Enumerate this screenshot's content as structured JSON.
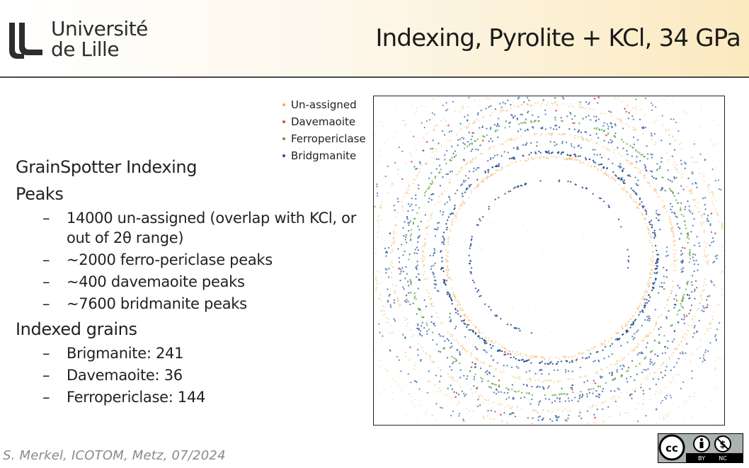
{
  "header": {
    "logo_line1": "Université",
    "logo_line2": "de Lille",
    "title": "Indexing, Pyrolite + KCl, 34 GPa"
  },
  "content": {
    "heading_grainspotter": "GrainSpotter Indexing",
    "heading_peaks": "Peaks",
    "peaks": [
      "14000 un-assigned (overlap with KCl, or out of 2θ range)",
      "~2000 ferro-periclase peaks",
      "~400 davemaoite peaks",
      "~7600 bridmanite peaks"
    ],
    "heading_grains": "Indexed grains",
    "grains": [
      "Brigmanite: 241",
      "Davemaoite: 36",
      "Ferropericlase: 144"
    ],
    "dash": "–"
  },
  "chart_data": {
    "type": "scatter",
    "legend": [
      {
        "name": "Un-assigned",
        "color": "#f5ab4c"
      },
      {
        "name": "Davemaoite",
        "color": "#e8483a"
      },
      {
        "name": "Ferropericlase",
        "color": "#52a038"
      },
      {
        "name": "Bridgmanite",
        "color": "#1f4f8f"
      }
    ],
    "legend_position": "top-left, outside plot",
    "axes": "hidden",
    "grid": false
  },
  "footer": {
    "credit": "S. Merkel, ICOTOM, Metz, 07/2024",
    "license": "CC BY NC"
  },
  "colors": {
    "header_gradient_end": "#fbe9bf",
    "rule": "#4a4a4a",
    "unassigned": "#f5ab4c",
    "davemaoite": "#e8483a",
    "ferropericlase": "#52a038",
    "bridgmanite": "#1f4f8f"
  }
}
